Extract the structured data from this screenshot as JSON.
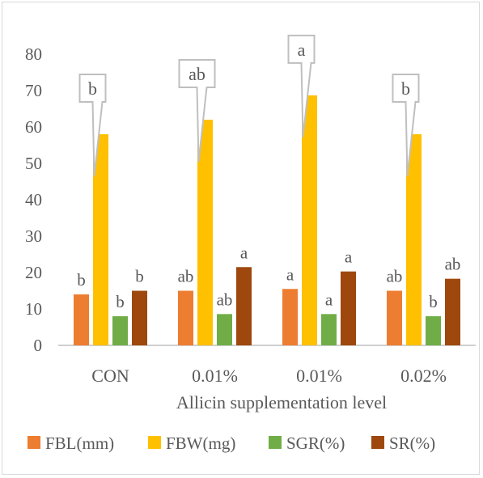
{
  "chart_data": {
    "type": "bar",
    "categories": [
      "CON",
      "0.01%",
      "0.01%",
      "0.02%"
    ],
    "xlabel": "Allicin supplementation level",
    "ylabel": "",
    "title": "",
    "ylim": [
      0,
      80
    ],
    "yticks": [
      0,
      10,
      20,
      30,
      40,
      50,
      60,
      70,
      80
    ],
    "grid": false,
    "legend_position": "bottom",
    "series": [
      {
        "name": "FBL(mm)",
        "color": "#ed7d31",
        "values": [
          14.0,
          15.0,
          15.5,
          15.0
        ],
        "labels": [
          "b",
          "ab",
          "a",
          "ab"
        ],
        "label_style": "plain"
      },
      {
        "name": "FBW(mg)",
        "color": "#ffc000",
        "values": [
          58.0,
          62.0,
          68.7,
          58.0
        ],
        "labels": [
          "b",
          "ab",
          "a",
          "b"
        ],
        "label_style": "callout"
      },
      {
        "name": "SGR(%)",
        "color": "#70ad47",
        "values": [
          8.0,
          8.6,
          8.6,
          8.0
        ],
        "labels": [
          "b",
          "ab",
          "a",
          "b"
        ],
        "label_style": "plain"
      },
      {
        "name": "SR(%)",
        "color": "#9e480e",
        "values": [
          15.0,
          21.5,
          20.3,
          18.3
        ],
        "labels": [
          "b",
          "a",
          "a",
          "ab"
        ],
        "label_style": "plain"
      }
    ]
  }
}
